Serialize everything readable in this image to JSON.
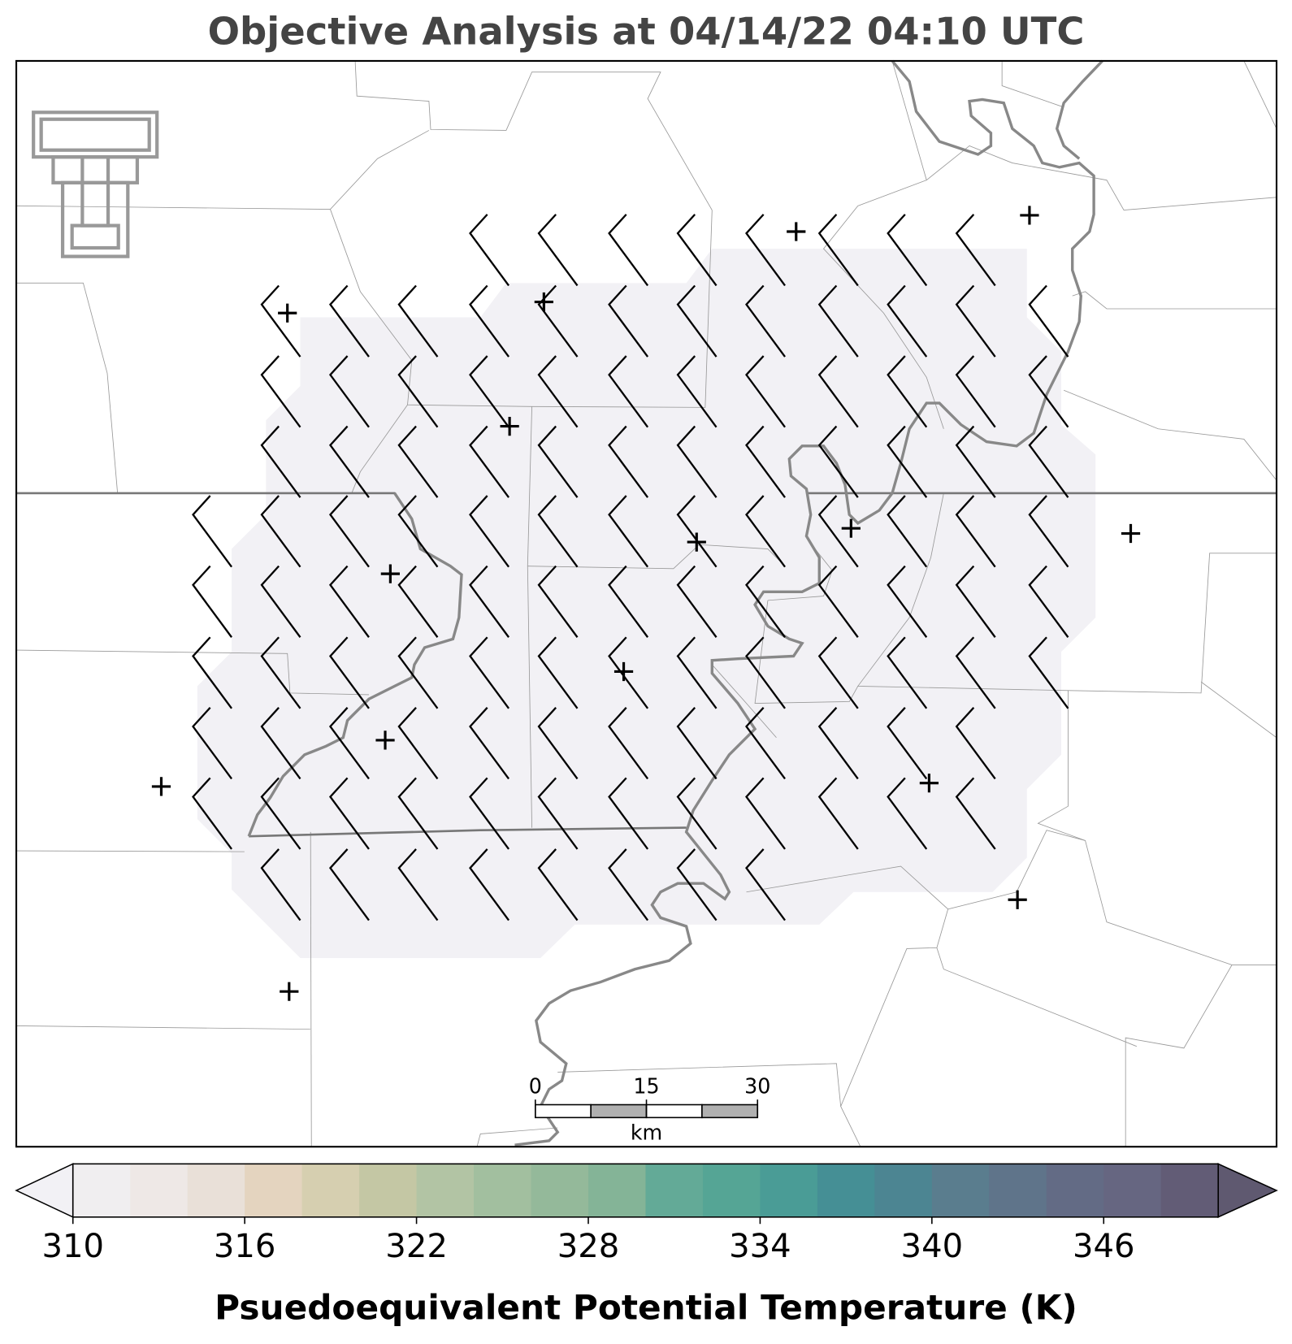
{
  "title": "Objective Analysis at 04/14/22 04:10 UTC",
  "colorbar": {
    "label": "Psuedoequivalent Potential Temperature (K)",
    "lim": [
      310,
      350
    ],
    "ticks": [
      310,
      316,
      322,
      328,
      334,
      340,
      346
    ],
    "colors": [
      "#f0eef0",
      "#eee8e6",
      "#e9e0d8",
      "#e4d4bf",
      "#d6cfb0",
      "#c4c7a4",
      "#b2c4a4",
      "#a2bf9f",
      "#94b99a",
      "#84b497",
      "#63aa97",
      "#55a595",
      "#4a9c96",
      "#458f95",
      "#4c8592",
      "#5a7d8e",
      "#5f748a",
      "#636b85",
      "#666681",
      "#625c76"
    ],
    "under_color": "#f2f1f5",
    "over_color": "#5f5970"
  },
  "scale_bar": {
    "ticks": [
      0,
      15,
      30
    ],
    "unit": "km"
  }
}
